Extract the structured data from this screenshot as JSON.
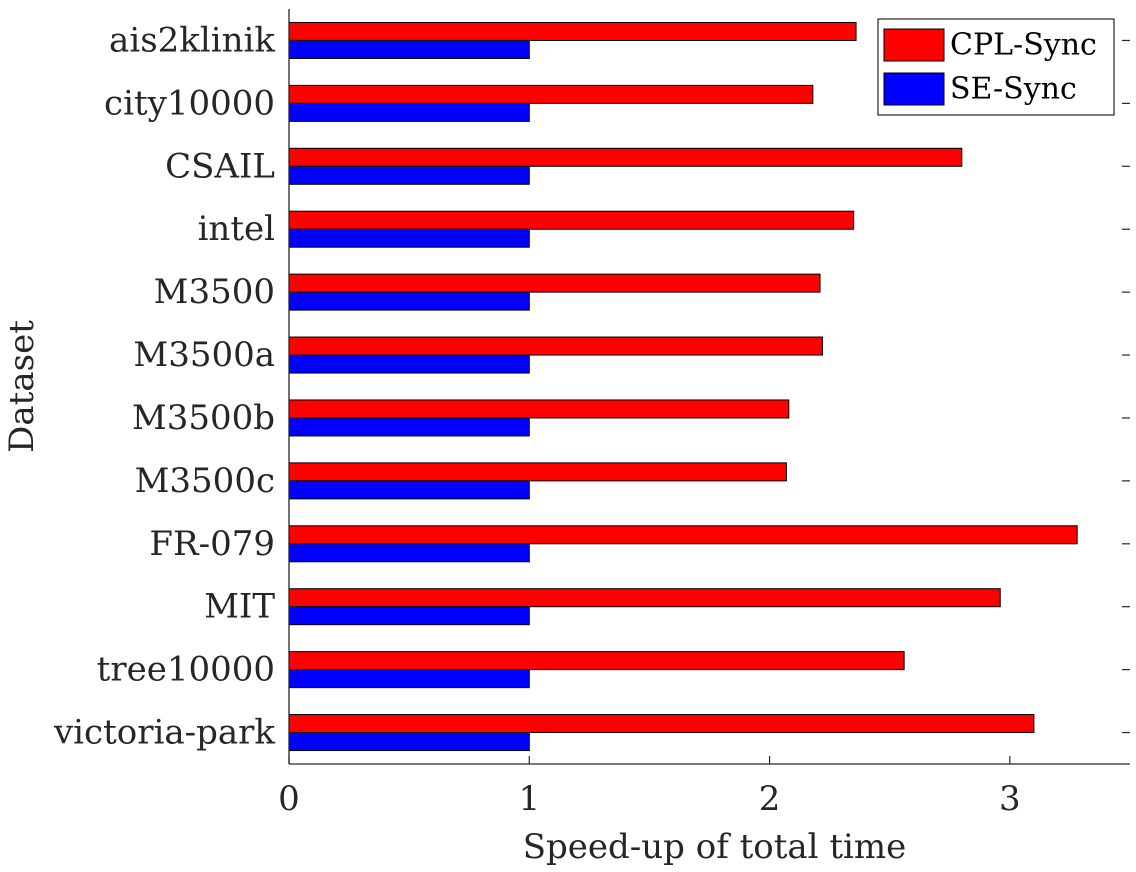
{
  "chart_data": {
    "type": "bar",
    "orientation": "horizontal",
    "categories": [
      "ais2klinik",
      "city10000",
      "CSAIL",
      "intel",
      "M3500",
      "M3500a",
      "M3500b",
      "M3500c",
      "FR-079",
      "MIT",
      "tree10000",
      "victoria-park"
    ],
    "series": [
      {
        "name": "CPL-Sync",
        "color": "#ff0000",
        "values": [
          2.36,
          2.18,
          2.8,
          2.35,
          2.21,
          2.22,
          2.08,
          2.07,
          3.28,
          2.96,
          2.56,
          3.1
        ]
      },
      {
        "name": "SE-Sync",
        "color": "#0000ff",
        "values": [
          1.0,
          1.0,
          1.0,
          1.0,
          1.0,
          1.0,
          1.0,
          1.0,
          1.0,
          1.0,
          1.0,
          1.0
        ]
      }
    ],
    "xlabel": "Speed-up of total time",
    "ylabel": "Dataset",
    "xlim": [
      0,
      3.5
    ],
    "xticks": [
      "0",
      "1",
      "2",
      "3"
    ],
    "grid": false,
    "legend_position": "top-right"
  }
}
